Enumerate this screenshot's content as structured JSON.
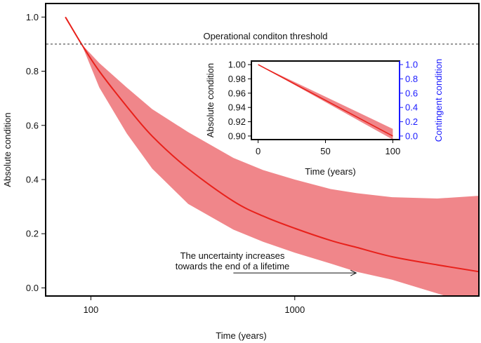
{
  "chart_data": [
    {
      "type": "line",
      "ylabel": "Absolute condition",
      "xlabel": "Time (years)",
      "xscale": "log",
      "xlim": [
        60,
        8000
      ],
      "ylim": [
        -0.03,
        1.05
      ],
      "x_ticks": [
        {
          "value": 100,
          "label": "100"
        },
        {
          "value": 1000,
          "label": "1000"
        }
      ],
      "y_ticks": [
        {
          "value": 0.0,
          "label": "0.0"
        },
        {
          "value": 0.2,
          "label": "0.2"
        },
        {
          "value": 0.4,
          "label": "0.4"
        },
        {
          "value": 0.6,
          "label": "0.6"
        },
        {
          "value": 0.8,
          "label": "0.8"
        },
        {
          "value": 1.0,
          "label": "1.0"
        }
      ],
      "line_color": "#e8211b",
      "band_color": "#f0868a",
      "series": [
        {
          "values": [
            {
              "x": 75,
              "y": 1.0
            },
            {
              "x": 90,
              "y": 0.9
            },
            {
              "x": 110,
              "y": 0.8
            },
            {
              "x": 150,
              "y": 0.67
            },
            {
              "x": 200,
              "y": 0.56
            },
            {
              "x": 300,
              "y": 0.44
            },
            {
              "x": 500,
              "y": 0.32
            },
            {
              "x": 700,
              "y": 0.265
            },
            {
              "x": 1000,
              "y": 0.22
            },
            {
              "x": 1500,
              "y": 0.175
            },
            {
              "x": 2000,
              "y": 0.15
            },
            {
              "x": 3000,
              "y": 0.115
            },
            {
              "x": 5000,
              "y": 0.085
            },
            {
              "x": 8000,
              "y": 0.06
            }
          ]
        }
      ],
      "uncertainty_band": {
        "upper": [
          {
            "x": 90,
            "y": 0.9
          },
          {
            "x": 110,
            "y": 0.83
          },
          {
            "x": 150,
            "y": 0.74
          },
          {
            "x": 200,
            "y": 0.66
          },
          {
            "x": 300,
            "y": 0.575
          },
          {
            "x": 500,
            "y": 0.48
          },
          {
            "x": 700,
            "y": 0.435
          },
          {
            "x": 1000,
            "y": 0.4
          },
          {
            "x": 1500,
            "y": 0.365
          },
          {
            "x": 2000,
            "y": 0.35
          },
          {
            "x": 3000,
            "y": 0.335
          },
          {
            "x": 5000,
            "y": 0.33
          },
          {
            "x": 8000,
            "y": 0.34
          }
        ],
        "lower": [
          {
            "x": 8000,
            "y": -0.03
          },
          {
            "x": 5500,
            "y": -0.03
          },
          {
            "x": 3000,
            "y": 0.03
          },
          {
            "x": 2000,
            "y": 0.06
          },
          {
            "x": 1500,
            "y": 0.09
          },
          {
            "x": 1000,
            "y": 0.13
          },
          {
            "x": 700,
            "y": 0.17
          },
          {
            "x": 500,
            "y": 0.215
          },
          {
            "x": 300,
            "y": 0.31
          },
          {
            "x": 200,
            "y": 0.44
          },
          {
            "x": 150,
            "y": 0.57
          },
          {
            "x": 110,
            "y": 0.74
          },
          {
            "x": 90,
            "y": 0.9
          }
        ]
      },
      "threshold": {
        "y": 0.9,
        "label": "Operational conditon threshold"
      },
      "annotation": {
        "lines": [
          "The uncertainty increases",
          "towards the end of a lifetime"
        ],
        "arrow_from_x": 500,
        "arrow_to_x": 2000,
        "arrow_y": 0.055
      }
    },
    {
      "type": "line",
      "xlabel": "Time (years)",
      "ylabel": "Absolute condition",
      "y2label": "Contingent condition",
      "xlim": [
        -5,
        105
      ],
      "ylim": [
        0.895,
        1.005
      ],
      "y2lim": [
        -0.05,
        1.05
      ],
      "x_ticks": [
        {
          "value": 0,
          "label": "0"
        },
        {
          "value": 50,
          "label": "50"
        },
        {
          "value": 100,
          "label": "100"
        }
      ],
      "y_ticks": [
        {
          "value": 0.9,
          "label": "0.90"
        },
        {
          "value": 0.92,
          "label": "0.92"
        },
        {
          "value": 0.94,
          "label": "0.94"
        },
        {
          "value": 0.96,
          "label": "0.96"
        },
        {
          "value": 0.98,
          "label": "0.98"
        },
        {
          "value": 1.0,
          "label": "1.00"
        }
      ],
      "y2_ticks": [
        {
          "value": 0.0,
          "label": "0.0"
        },
        {
          "value": 0.2,
          "label": "0.2"
        },
        {
          "value": 0.4,
          "label": "0.4"
        },
        {
          "value": 0.6,
          "label": "0.6"
        },
        {
          "value": 0.8,
          "label": "0.8"
        },
        {
          "value": 1.0,
          "label": "1.0"
        }
      ],
      "y2_color": "#1a1aff",
      "series": [
        {
          "values": [
            {
              "x": 0,
              "y": 1.0
            },
            {
              "x": 100,
              "y": 0.9
            }
          ]
        }
      ],
      "uncertainty_band": {
        "upper": [
          {
            "x": 0,
            "y": 1.0
          },
          {
            "x": 100,
            "y": 0.91
          }
        ],
        "lower": [
          {
            "x": 100,
            "y": 0.895
          },
          {
            "x": 0,
            "y": 1.0
          }
        ]
      }
    }
  ]
}
